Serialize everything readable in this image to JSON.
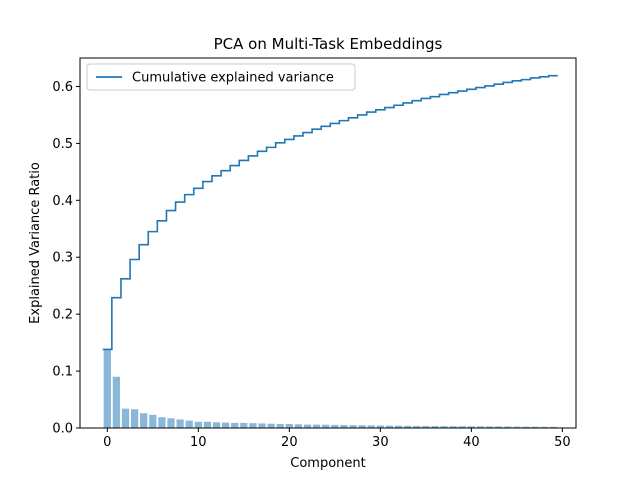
{
  "chart_data": {
    "type": "bar+step",
    "title": "PCA on Multi-Task Embeddings",
    "xlabel": "Component",
    "ylabel": "Explained Variance Ratio",
    "xlim": [
      -3,
      51.5
    ],
    "ylim": [
      0,
      0.65
    ],
    "x_ticks": [
      0,
      10,
      20,
      30,
      40,
      50
    ],
    "y_ticks": [
      0.0,
      0.1,
      0.2,
      0.3,
      0.4,
      0.5,
      0.6
    ],
    "x_tick_labels": [
      "0",
      "10",
      "20",
      "30",
      "40",
      "50"
    ],
    "y_tick_labels": [
      "0.0",
      "0.1",
      "0.2",
      "0.3",
      "0.4",
      "0.5",
      "0.6"
    ],
    "grid": false,
    "legend": {
      "placement": "top-left",
      "entries": [
        "Cumulative explained variance"
      ]
    },
    "x": [
      0,
      1,
      2,
      3,
      4,
      5,
      6,
      7,
      8,
      9,
      10,
      11,
      12,
      13,
      14,
      15,
      16,
      17,
      18,
      19,
      20,
      21,
      22,
      23,
      24,
      25,
      26,
      27,
      28,
      29,
      30,
      31,
      32,
      33,
      34,
      35,
      36,
      37,
      38,
      39,
      40,
      41,
      42,
      43,
      44,
      45,
      46,
      47,
      48,
      49
    ],
    "series": [
      {
        "type": "bar",
        "color": "#8ab8d8",
        "values": [
          0.138,
          0.09,
          0.034,
          0.033,
          0.026,
          0.023,
          0.019,
          0.017,
          0.015,
          0.013,
          0.011,
          0.011,
          0.01,
          0.0095,
          0.009,
          0.009,
          0.0085,
          0.008,
          0.0075,
          0.007,
          0.007,
          0.0065,
          0.006,
          0.006,
          0.0058,
          0.0055,
          0.0052,
          0.005,
          0.0048,
          0.0046,
          0.0044,
          0.0042,
          0.004,
          0.0038,
          0.0036,
          0.0035,
          0.0034,
          0.0033,
          0.0032,
          0.0031,
          0.003,
          0.0029,
          0.0028,
          0.0027,
          0.0026,
          0.0025,
          0.0024,
          0.0023,
          0.0022,
          0.0021
        ]
      },
      {
        "name": "Cumulative explained variance",
        "type": "step",
        "color": "#1f77b4",
        "values": [
          0.138,
          0.229,
          0.262,
          0.296,
          0.322,
          0.345,
          0.364,
          0.382,
          0.397,
          0.41,
          0.421,
          0.433,
          0.443,
          0.452,
          0.461,
          0.47,
          0.478,
          0.486,
          0.493,
          0.501,
          0.507,
          0.513,
          0.519,
          0.525,
          0.53,
          0.535,
          0.54,
          0.545,
          0.55,
          0.555,
          0.559,
          0.563,
          0.567,
          0.571,
          0.575,
          0.579,
          0.582,
          0.586,
          0.589,
          0.592,
          0.595,
          0.598,
          0.601,
          0.604,
          0.607,
          0.61,
          0.612,
          0.615,
          0.617,
          0.619
        ]
      }
    ]
  }
}
